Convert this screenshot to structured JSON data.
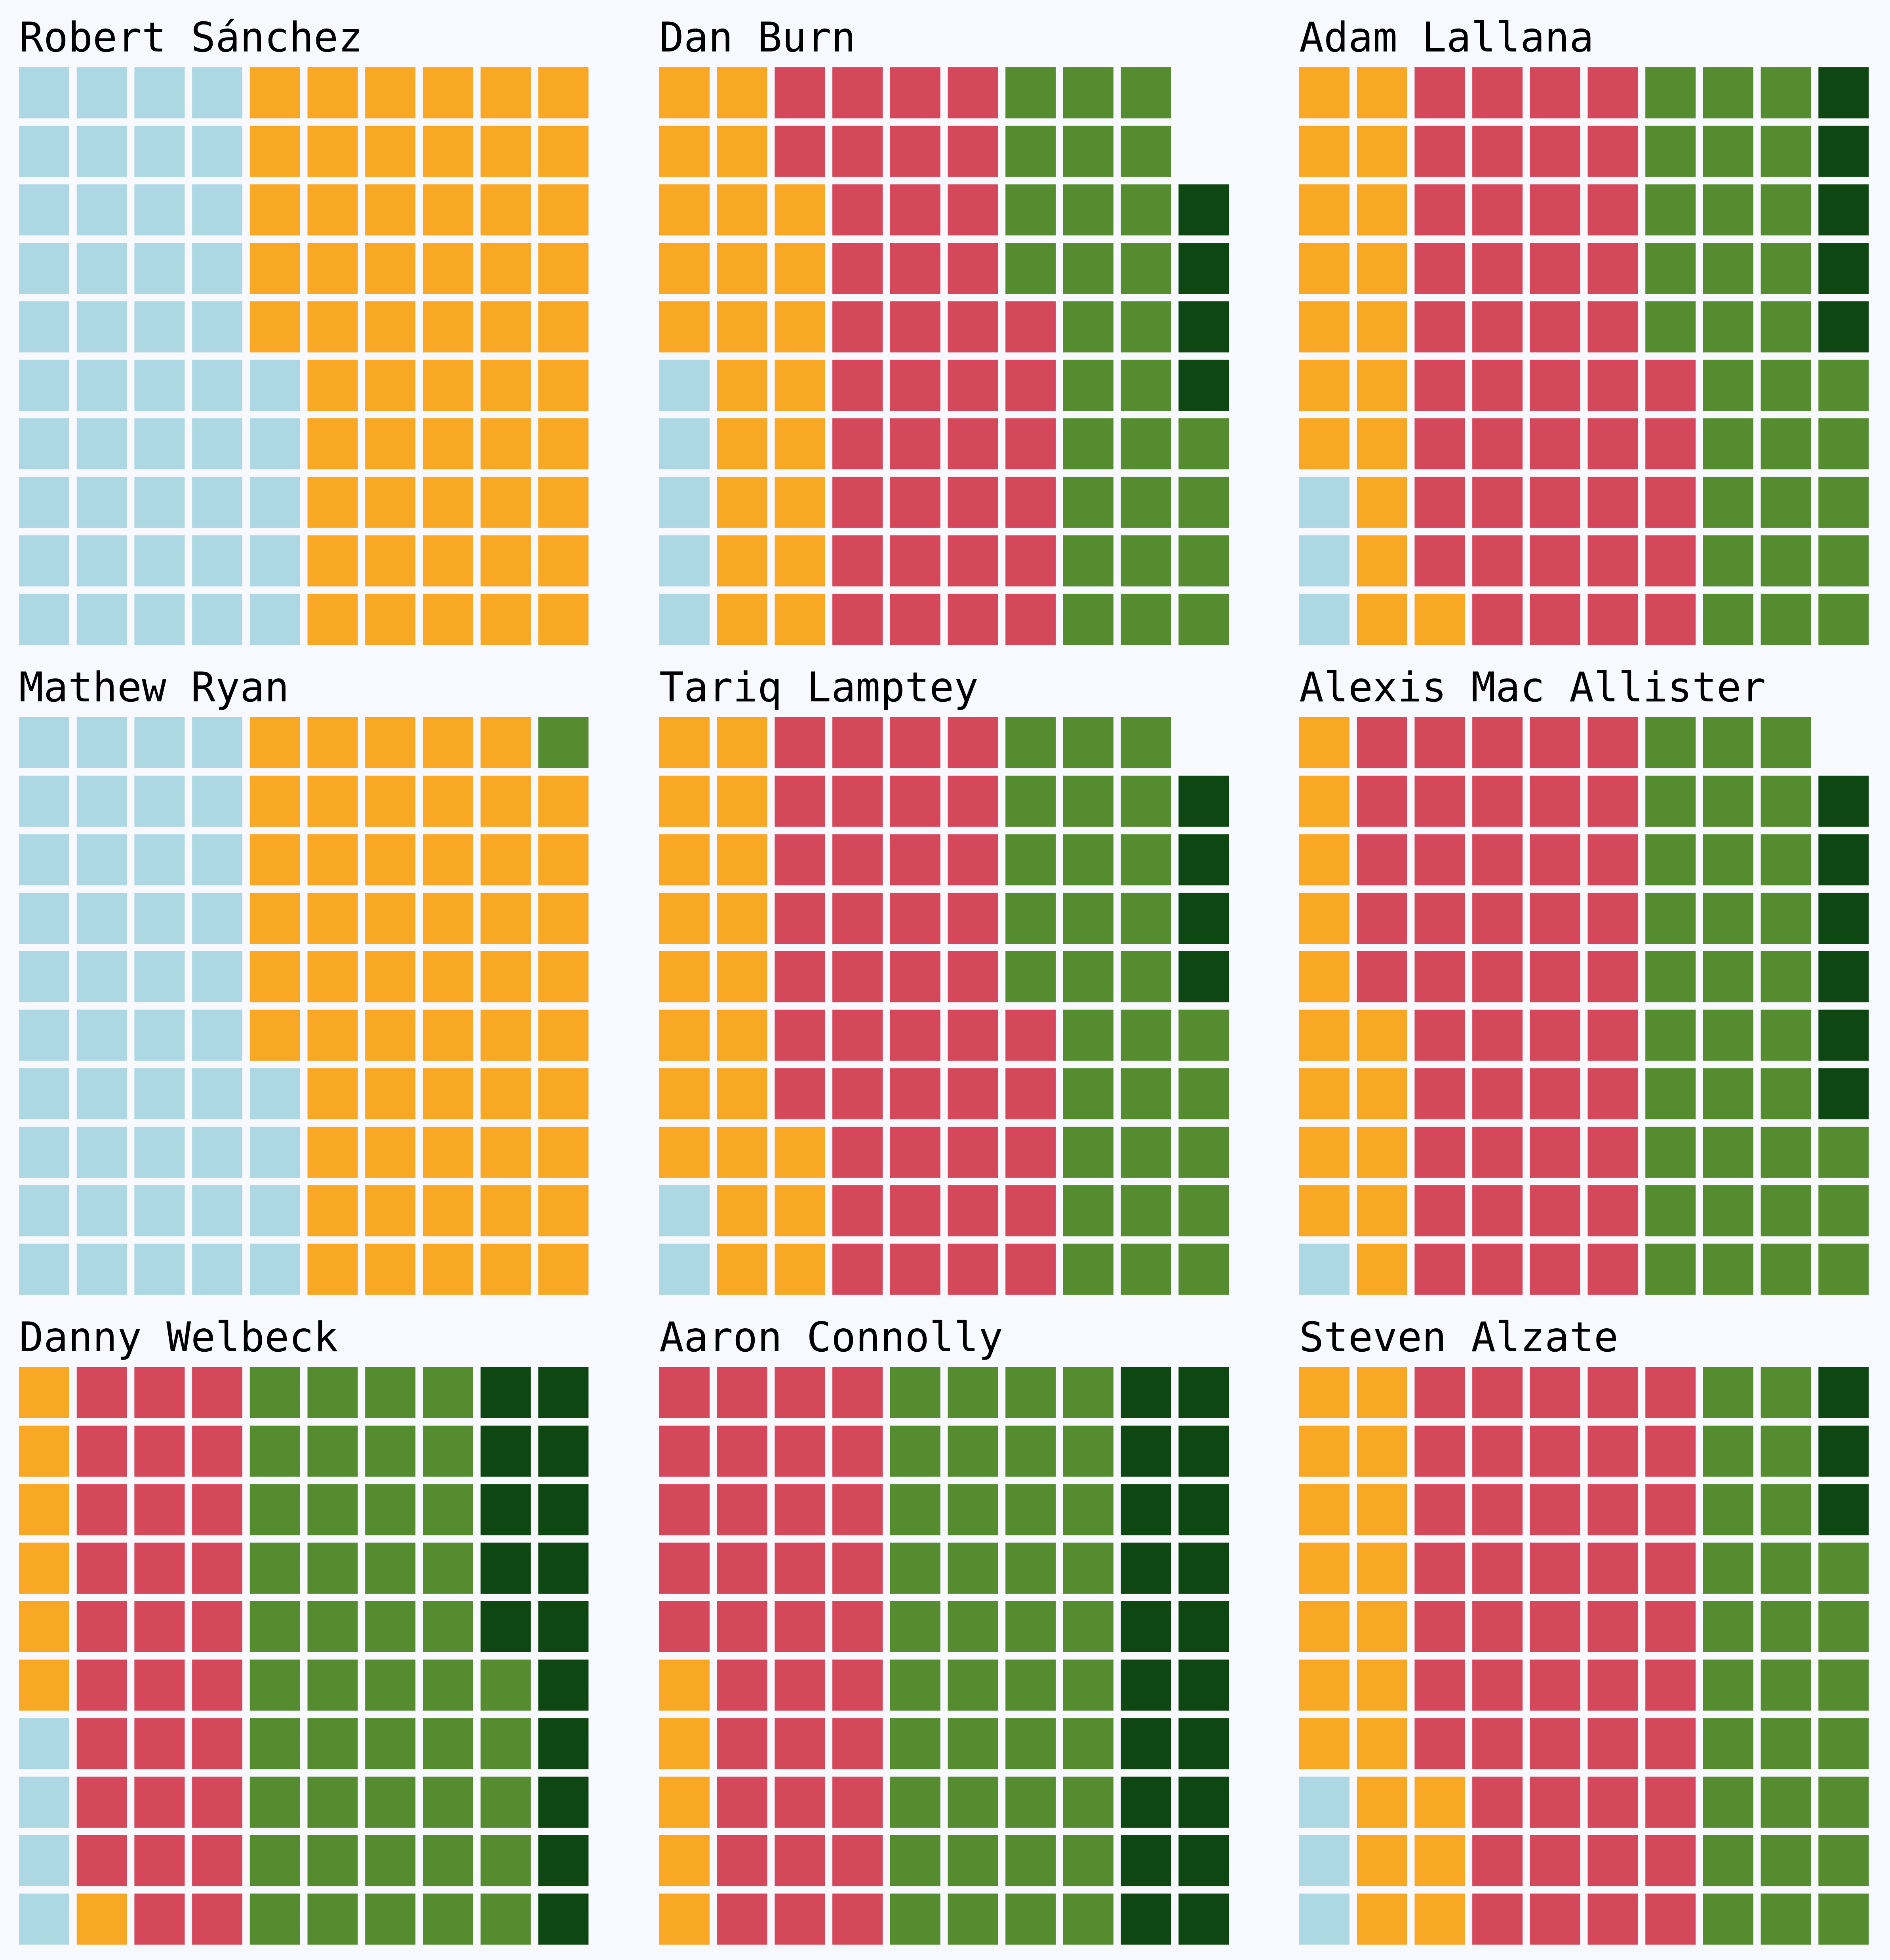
{
  "chart_data": {
    "type": "waffle",
    "grid": {
      "rows": 10,
      "cols": 10,
      "fill_order": "column-major, bottom-to-top"
    },
    "categories": [
      "c1",
      "c2",
      "c3",
      "c4",
      "c5"
    ],
    "colors": {
      "c1": "#add8e3",
      "c2": "#f9a825",
      "c3": "#d5485c",
      "c4": "#548c2f",
      "c5": "#0e4711"
    },
    "panels": [
      {
        "title": "Robert Sánchez",
        "counts": [
          45,
          55,
          0,
          0,
          0
        ]
      },
      {
        "title": "Dan Burn",
        "counts": [
          5,
          23,
          38,
          28,
          4
        ]
      },
      {
        "title": "Adam Lallana",
        "counts": [
          3,
          18,
          44,
          30,
          5
        ]
      },
      {
        "title": "Mathew Ryan",
        "counts": [
          44,
          55,
          0,
          1,
          0
        ]
      },
      {
        "title": "Tariq Lamptey",
        "counts": [
          2,
          21,
          42,
          30,
          4
        ]
      },
      {
        "title": "Alexis Mac Allister",
        "counts": [
          1,
          14,
          45,
          33,
          6
        ]
      },
      {
        "title": "Danny Welbeck",
        "counts": [
          4,
          7,
          29,
          45,
          15
        ]
      },
      {
        "title": "Aaron Connolly",
        "counts": [
          0,
          5,
          35,
          40,
          20
        ]
      },
      {
        "title": "Steven Alzate",
        "counts": [
          3,
          20,
          47,
          27,
          3
        ]
      }
    ]
  }
}
